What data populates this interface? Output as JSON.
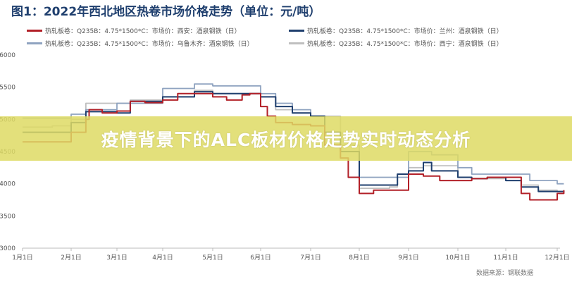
{
  "chart_data": {
    "type": "line",
    "title": "图1：2022年西北地区热卷市场价格走势（单位：元/吨）",
    "source": "数据来源：钢联数据",
    "ylim": [
      3000,
      6000
    ],
    "yticks": [
      3000,
      3500,
      4000,
      4500,
      5000,
      5500,
      6000
    ],
    "xticks": [
      "1月1日",
      "2月1日",
      "3月1日",
      "4月1日",
      "5月1日",
      "6月1日",
      "7月1日",
      "8月1日",
      "9月1日",
      "10月1日",
      "11月1日",
      "12月1日"
    ],
    "grid": false,
    "legend_position": "top",
    "series": [
      {
        "name": "热轧板卷：Q235B：4.75*1500*C：市场价：西安：酒泉钢铁（日）",
        "color": "#b22028",
        "x": [
          "01-01",
          "01-25",
          "02-01",
          "02-10",
          "02-12",
          "02-20",
          "03-01",
          "03-10",
          "03-20",
          "04-01",
          "04-10",
          "04-20",
          "05-01",
          "05-10",
          "05-20",
          "05-25",
          "06-01",
          "06-05",
          "06-10",
          "06-20",
          "07-01",
          "07-10",
          "07-20",
          "07-25",
          "08-01",
          "08-10",
          "08-25",
          "09-01",
          "09-10",
          "09-20",
          "10-01",
          "10-10",
          "10-20",
          "11-01",
          "11-10",
          "11-15",
          "12-01",
          "12-05"
        ],
        "y": [
          4650,
          4650,
          4800,
          5000,
          5150,
          5100,
          5130,
          5280,
          5260,
          5300,
          5400,
          5400,
          5350,
          5300,
          5380,
          5400,
          5200,
          5050,
          4950,
          4920,
          4900,
          4600,
          4400,
          4100,
          3850,
          3900,
          3900,
          4150,
          4120,
          4050,
          4050,
          4080,
          4100,
          4100,
          3850,
          3750,
          3850,
          3900
        ]
      },
      {
        "name": "热轧板卷：Q235B：4.75*1500*C：市场价：兰州：酒泉钢铁（日）",
        "color": "#1f3f6e",
        "x": [
          "01-01",
          "02-01",
          "02-10",
          "03-01",
          "03-10",
          "04-01",
          "04-20",
          "05-01",
          "05-20",
          "06-01",
          "06-10",
          "06-20",
          "07-01",
          "07-10",
          "07-20",
          "08-01",
          "08-20",
          "08-25",
          "09-01",
          "09-10",
          "09-15",
          "10-01",
          "10-10",
          "10-20",
          "11-01",
          "11-10",
          "11-20",
          "12-01",
          "12-05"
        ],
        "y": [
          4800,
          4950,
          5120,
          5100,
          5280,
          5350,
          5430,
          5400,
          5400,
          5350,
          5200,
          5100,
          5050,
          4800,
          4500,
          3980,
          3980,
          4150,
          4200,
          4330,
          4200,
          4100,
          4080,
          4100,
          4050,
          3950,
          3880,
          3880,
          3870
        ]
      },
      {
        "name": "热轧板卷：Q235B：4.75*1500*C：市场价：乌鲁木齐：酒泉钢铁（日）",
        "color": "#8fa3c0",
        "x": [
          "01-01",
          "02-01",
          "02-10",
          "03-01",
          "04-01",
          "04-20",
          "05-01",
          "05-20",
          "06-01",
          "06-10",
          "06-20",
          "07-01",
          "07-10",
          "07-20",
          "08-01",
          "08-20",
          "09-01",
          "09-15",
          "10-01",
          "10-10",
          "11-01",
          "11-15",
          "12-01",
          "12-05"
        ],
        "y": [
          5020,
          5080,
          5150,
          5250,
          5480,
          5550,
          5520,
          5520,
          5400,
          5250,
          5150,
          5050,
          4800,
          4500,
          4100,
          4100,
          4500,
          4450,
          4250,
          4150,
          4150,
          4050,
          4000,
          4000
        ]
      },
      {
        "name": "热轧板卷：Q235B：4.75*1500*C：市场价：西宁：酒泉钢铁（日）",
        "color": "#bfbfbf",
        "x": [
          "01-01",
          "01-20",
          "02-01",
          "02-10",
          "03-01",
          "03-10",
          "04-01",
          "04-20",
          "05-01",
          "05-20",
          "06-01",
          "06-10",
          "06-20",
          "07-01",
          "07-20",
          "08-01",
          "08-20",
          "08-25",
          "09-01",
          "09-10",
          "10-01",
          "10-10",
          "11-01",
          "11-10",
          "11-20",
          "12-01",
          "12-05"
        ],
        "y": [
          4880,
          4900,
          5000,
          5250,
          5250,
          5300,
          5350,
          5450,
          5400,
          5400,
          5350,
          5150,
          5100,
          5050,
          4600,
          3930,
          3950,
          4150,
          4250,
          4280,
          4100,
          4080,
          4100,
          3980,
          3900,
          3880,
          3900
        ]
      }
    ]
  },
  "banner": {
    "text": "疫情背景下的ALC板材价格走势实时动态分析"
  }
}
